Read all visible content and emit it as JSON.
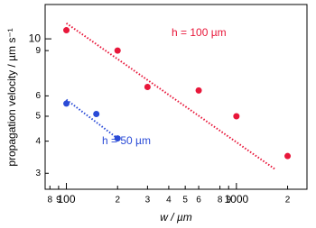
{
  "chart_data": {
    "type": "scatter",
    "x_label": "w / µm",
    "y_label": "propagation velocity / µm s⁻¹",
    "xlog": true,
    "ylog": true,
    "xlim": [
      75,
      2600
    ],
    "ylim": [
      2.6,
      13.6
    ],
    "xticks": [
      {
        "value": 80,
        "label": "8"
      },
      {
        "value": 90,
        "label": "9"
      },
      100,
      {
        "value": 200,
        "label": "2"
      },
      {
        "value": 300,
        "label": "3"
      },
      {
        "value": 400,
        "label": "4"
      },
      {
        "value": 500,
        "label": "5"
      },
      {
        "value": 600,
        "label": "6"
      },
      {
        "value": 800,
        "label": "8"
      },
      {
        "value": 900,
        "label": "9"
      },
      1000,
      {
        "value": 2000,
        "label": "2"
      }
    ],
    "yticks": [
      3,
      4,
      5,
      6,
      9,
      10
    ],
    "series": [
      {
        "name": "h = 100 µm",
        "color": "#e8173a",
        "x": [
          100,
          200,
          300,
          600,
          1000,
          2000
        ],
        "values": [
          10.8,
          9.0,
          6.5,
          6.3,
          5.0,
          3.5
        ],
        "fit": {
          "x": [
            100,
            1700
          ],
          "values": [
            11.5,
            3.1
          ]
        }
      },
      {
        "name": "h = 50 µm",
        "color": "#2a4bd7",
        "x": [
          100,
          150,
          200
        ],
        "values": [
          5.6,
          5.1,
          4.1
        ],
        "fit": {
          "x": [
            100,
            200
          ],
          "values": [
            5.8,
            4.1
          ]
        }
      }
    ]
  }
}
